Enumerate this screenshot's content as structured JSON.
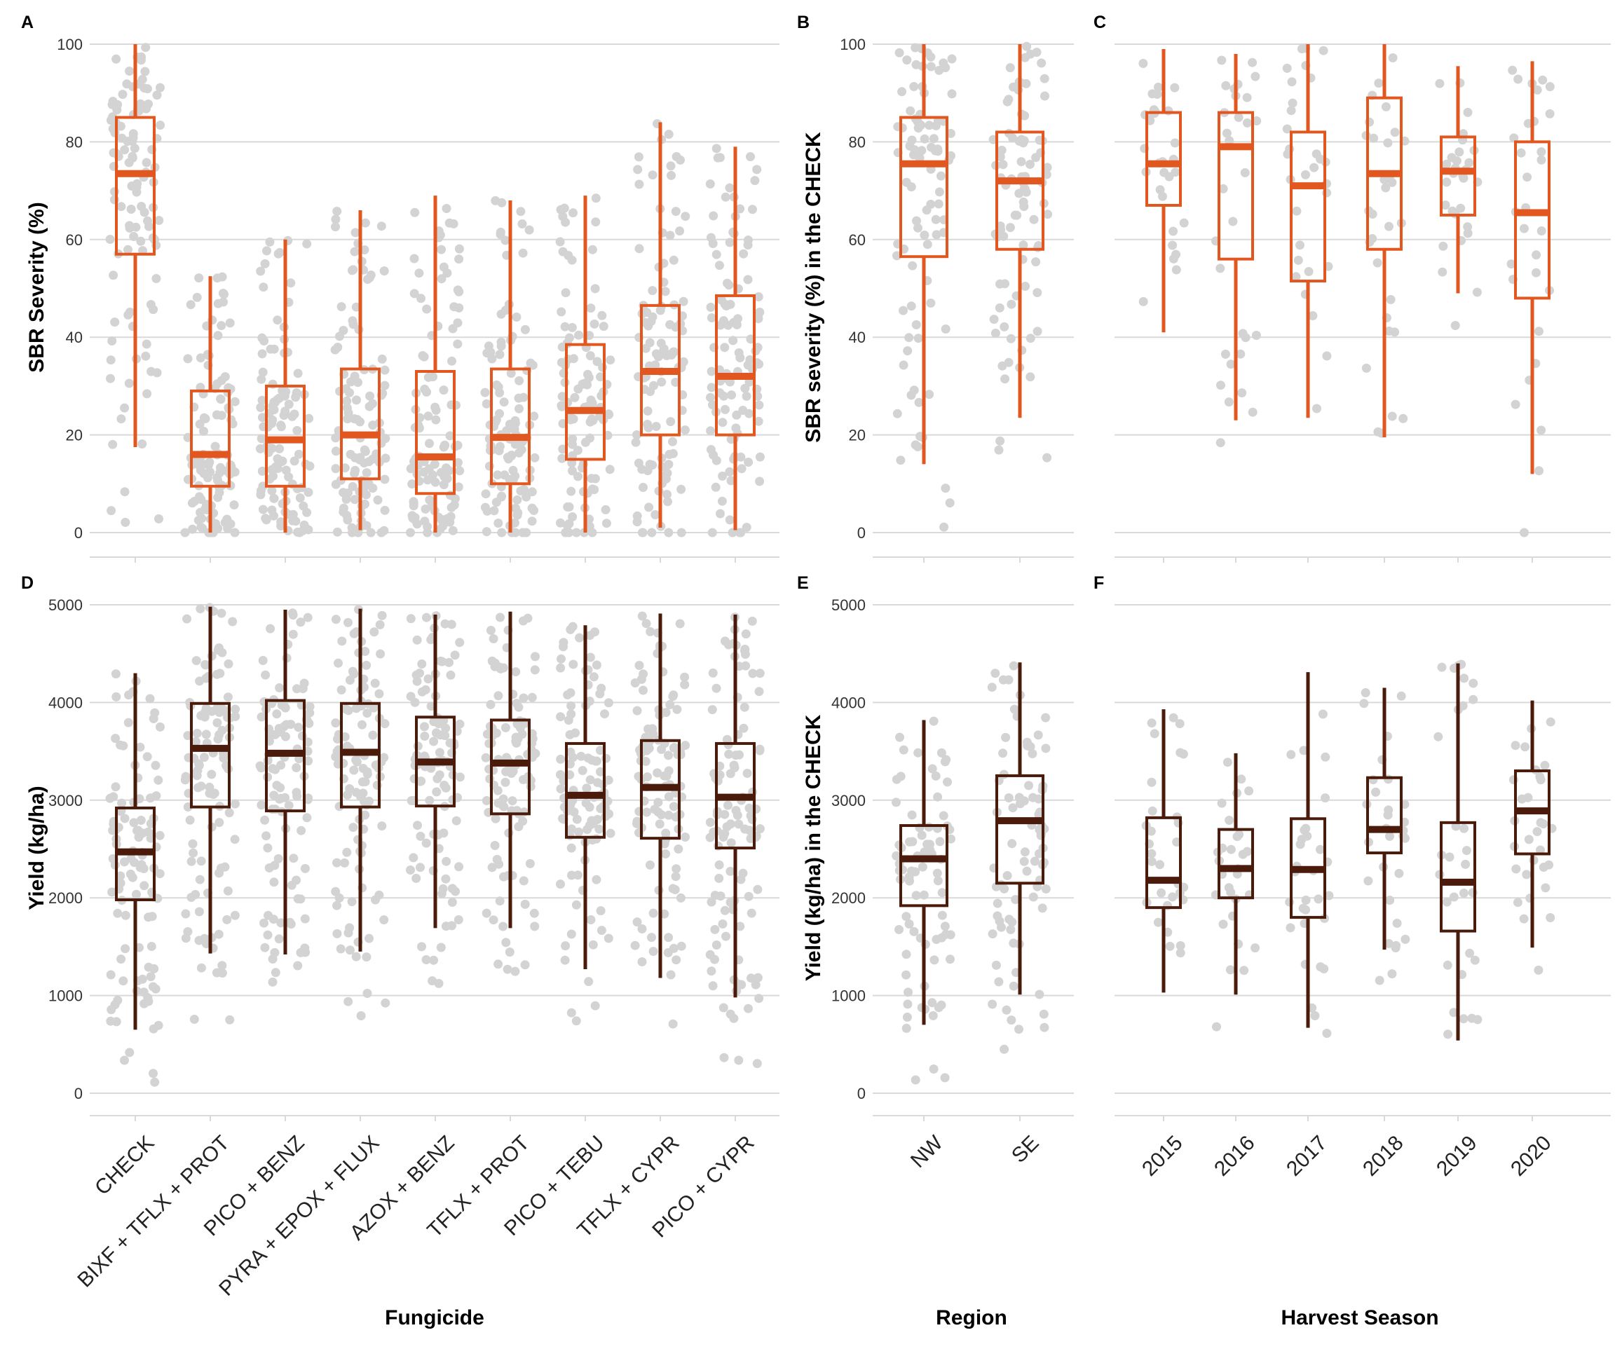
{
  "colors": {
    "severity": "#e2571f",
    "yield": "#4a1a0a",
    "points": "#d3d3d3",
    "grid": "#d9d9d9"
  },
  "xlabels": {
    "fungicide": "Fungicide",
    "region": "Region",
    "season": "Harvest Season"
  },
  "chart_data": [
    {
      "panel": "A",
      "type": "box",
      "ylabel": "SBR Severity (%)",
      "yticks": [
        0,
        20,
        40,
        60,
        80,
        100
      ],
      "ylim": [
        -5,
        105
      ],
      "categories": [
        "CHECK",
        "BIXF + TFLX + PROT",
        "PICO + BENZ",
        "PYRA + EPOX + FLUX",
        "AZOX + BENZ",
        "TFLX + PROT",
        "PICO + TEBU",
        "TFLX + CYPR",
        "PICO + CYPR"
      ],
      "boxes": [
        {
          "min": 17.5,
          "q1": 57,
          "median": 73.5,
          "q3": 85,
          "max": 100
        },
        {
          "min": 0,
          "q1": 9.5,
          "median": 16,
          "q3": 29,
          "max": 52.5
        },
        {
          "min": 0,
          "q1": 9.5,
          "median": 19,
          "q3": 30,
          "max": 60
        },
        {
          "min": 0.5,
          "q1": 11,
          "median": 20,
          "q3": 33.5,
          "max": 66
        },
        {
          "min": 0,
          "q1": 8,
          "median": 15.5,
          "q3": 33,
          "max": 69
        },
        {
          "min": 0,
          "q1": 10,
          "median": 19.5,
          "q3": 33.5,
          "max": 68
        },
        {
          "min": 0,
          "q1": 15,
          "median": 25,
          "q3": 38.5,
          "max": 69
        },
        {
          "min": 1,
          "q1": 20,
          "median": 33,
          "q3": 46.5,
          "max": 84
        },
        {
          "min": 0.5,
          "q1": 20,
          "median": 32,
          "q3": 48.5,
          "max": 79
        }
      ],
      "points_per_group": 110
    },
    {
      "panel": "B",
      "type": "box",
      "ylabel": "SBR severity (%) in the CHECK",
      "yticks": [
        0,
        20,
        40,
        60,
        80,
        100
      ],
      "ylim": [
        -5,
        105
      ],
      "categories": [
        "NW",
        "SE"
      ],
      "boxes": [
        {
          "min": 14,
          "q1": 56.5,
          "median": 75.5,
          "q3": 85,
          "max": 100
        },
        {
          "min": 23.5,
          "q1": 58,
          "median": 72,
          "q3": 82,
          "max": 100
        }
      ],
      "points_per_group": 90
    },
    {
      "panel": "C",
      "type": "box",
      "ylabel": "",
      "yticks": [
        0,
        20,
        40,
        60,
        80,
        100
      ],
      "ylim": [
        -5,
        105
      ],
      "categories": [
        "2015",
        "2016",
        "2017",
        "2018",
        "2019",
        "2020"
      ],
      "boxes": [
        {
          "min": 41,
          "q1": 67,
          "median": 75.5,
          "q3": 86,
          "max": 99
        },
        {
          "min": 23,
          "q1": 56,
          "median": 79,
          "q3": 86,
          "max": 98
        },
        {
          "min": 23.5,
          "q1": 51.5,
          "median": 71,
          "q3": 82,
          "max": 100
        },
        {
          "min": 19.5,
          "q1": 58,
          "median": 73.5,
          "q3": 89,
          "max": 100
        },
        {
          "min": 49,
          "q1": 65,
          "median": 74,
          "q3": 81,
          "max": 95.5
        },
        {
          "min": 12,
          "q1": 48,
          "median": 65.5,
          "q3": 80,
          "max": 96.5
        }
      ],
      "points_per_group": 30
    },
    {
      "panel": "D",
      "type": "box",
      "ylabel": "Yield (kg/ha)",
      "yticks": [
        0,
        1000,
        2000,
        3000,
        4000,
        5000
      ],
      "ylim": [
        -250,
        5250
      ],
      "categories": [
        "CHECK",
        "BIXF + TFLX + PROT",
        "PICO + BENZ",
        "PYRA + EPOX + FLUX",
        "AZOX + BENZ",
        "TFLX + PROT",
        "PICO + TEBU",
        "TFLX + CYPR",
        "PICO + CYPR"
      ],
      "boxes": [
        {
          "min": 650,
          "q1": 1980,
          "median": 2470,
          "q3": 2920,
          "max": 4300
        },
        {
          "min": 1430,
          "q1": 2930,
          "median": 3530,
          "q3": 3990,
          "max": 4980
        },
        {
          "min": 1420,
          "q1": 2890,
          "median": 3480,
          "q3": 4020,
          "max": 4950
        },
        {
          "min": 1450,
          "q1": 2930,
          "median": 3490,
          "q3": 3990,
          "max": 4960
        },
        {
          "min": 1690,
          "q1": 2940,
          "median": 3390,
          "q3": 3850,
          "max": 4900
        },
        {
          "min": 1690,
          "q1": 2860,
          "median": 3380,
          "q3": 3820,
          "max": 4930
        },
        {
          "min": 1270,
          "q1": 2620,
          "median": 3050,
          "q3": 3580,
          "max": 4790
        },
        {
          "min": 1180,
          "q1": 2610,
          "median": 3130,
          "q3": 3610,
          "max": 4910
        },
        {
          "min": 980,
          "q1": 2510,
          "median": 3030,
          "q3": 3580,
          "max": 4900
        }
      ],
      "points_per_group": 110
    },
    {
      "panel": "E",
      "type": "box",
      "ylabel": "Yield (kg/ha) in the CHECK",
      "yticks": [
        0,
        1000,
        2000,
        3000,
        4000,
        5000
      ],
      "ylim": [
        -250,
        5250
      ],
      "categories": [
        "NW",
        "SE"
      ],
      "boxes": [
        {
          "min": 700,
          "q1": 1920,
          "median": 2400,
          "q3": 2740,
          "max": 3820
        },
        {
          "min": 1010,
          "q1": 2150,
          "median": 2790,
          "q3": 3250,
          "max": 4410
        }
      ],
      "points_per_group": 80
    },
    {
      "panel": "F",
      "type": "box",
      "ylabel": "",
      "yticks": [
        0,
        1000,
        2000,
        3000,
        4000,
        5000
      ],
      "ylim": [
        -250,
        5250
      ],
      "categories": [
        "2015",
        "2016",
        "2017",
        "2018",
        "2019",
        "2020"
      ],
      "boxes": [
        {
          "min": 1030,
          "q1": 1900,
          "median": 2180,
          "q3": 2820,
          "max": 3930
        },
        {
          "min": 1010,
          "q1": 2000,
          "median": 2300,
          "q3": 2700,
          "max": 3480
        },
        {
          "min": 670,
          "q1": 1800,
          "median": 2290,
          "q3": 2810,
          "max": 4310
        },
        {
          "min": 1470,
          "q1": 2460,
          "median": 2700,
          "q3": 3230,
          "max": 4150
        },
        {
          "min": 540,
          "q1": 1660,
          "median": 2160,
          "q3": 2770,
          "max": 4400
        },
        {
          "min": 1490,
          "q1": 2450,
          "median": 2890,
          "q3": 3300,
          "max": 4020
        }
      ],
      "points_per_group": 30
    }
  ]
}
